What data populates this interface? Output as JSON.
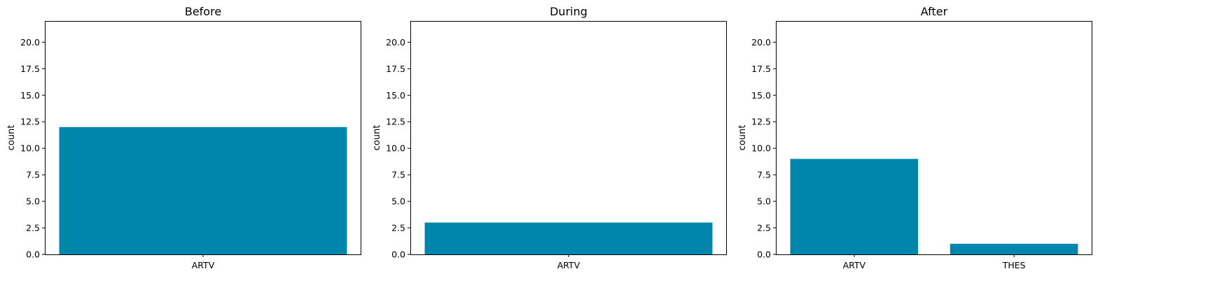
{
  "chart_data": [
    {
      "type": "bar",
      "title": "Before",
      "ylabel": "count",
      "categories": [
        "ARTV"
      ],
      "values": [
        12
      ],
      "ylim": [
        0,
        22
      ],
      "yticks": [
        "0.0",
        "2.5",
        "5.0",
        "7.5",
        "10.0",
        "12.5",
        "15.0",
        "17.5",
        "20.0"
      ],
      "bar_color": "#0086AD"
    },
    {
      "type": "bar",
      "title": "During",
      "ylabel": "count",
      "categories": [
        "ARTV"
      ],
      "values": [
        3
      ],
      "ylim": [
        0,
        22
      ],
      "yticks": [
        "0.0",
        "2.5",
        "5.0",
        "7.5",
        "10.0",
        "12.5",
        "15.0",
        "17.5",
        "20.0"
      ],
      "bar_color": "#0086AD"
    },
    {
      "type": "bar",
      "title": "After",
      "ylabel": "count",
      "categories": [
        "ARTV",
        "THES"
      ],
      "values": [
        9,
        1
      ],
      "ylim": [
        0,
        22
      ],
      "yticks": [
        "0.0",
        "2.5",
        "5.0",
        "7.5",
        "10.0",
        "12.5",
        "15.0",
        "17.5",
        "20.0"
      ],
      "bar_color": "#0086AD"
    }
  ]
}
